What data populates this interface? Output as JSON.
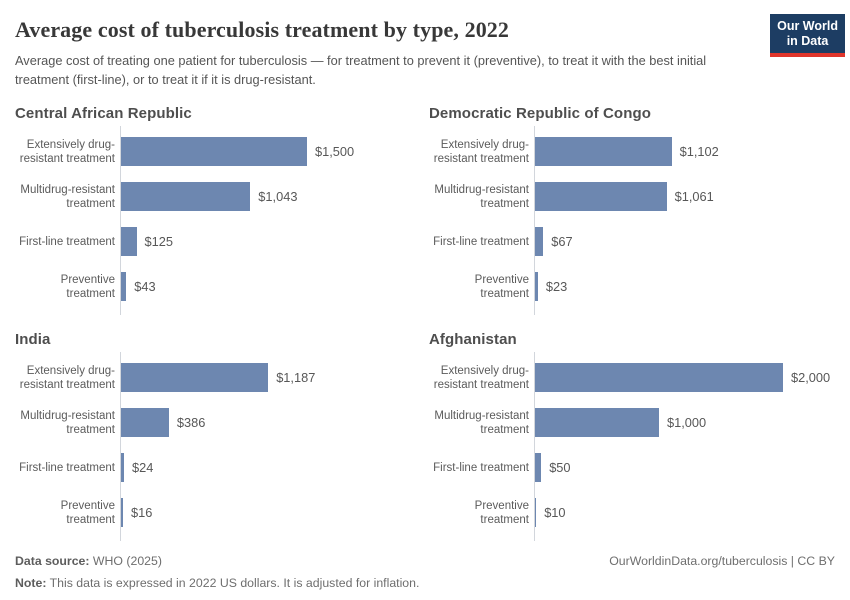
{
  "chart_data": {
    "type": "bar",
    "orientation": "horizontal",
    "title": "Average cost of tuberculosis treatment by type, 2022",
    "subtitle": "Average cost of treating one patient for tuberculosis — for treatment to prevent it (preventive), to treat it with the best initial treatment (first-line), or to treat it if it is drug-resistant.",
    "categories": [
      "Extensively drug-resistant treatment",
      "Multidrug-resistant treatment",
      "First-line treatment",
      "Preventive treatment"
    ],
    "xlim": [
      0,
      2000
    ],
    "grid": false,
    "legend": false,
    "bar_color": "#6d87b0",
    "unit": "2022 US dollars",
    "facets": [
      {
        "title": "Central African Republic",
        "values": [
          1500,
          1043,
          125,
          43
        ],
        "value_labels": [
          "$1,500",
          "$1,043",
          "$125",
          "$43"
        ]
      },
      {
        "title": "Democratic Republic of Congo",
        "values": [
          1102,
          1061,
          67,
          23
        ],
        "value_labels": [
          "$1,102",
          "$1,061",
          "$67",
          "$23"
        ]
      },
      {
        "title": "India",
        "values": [
          1187,
          386,
          24,
          16
        ],
        "value_labels": [
          "$1,187",
          "$386",
          "$24",
          "$16"
        ]
      },
      {
        "title": "Afghanistan",
        "values": [
          2000,
          1000,
          50,
          10
        ],
        "value_labels": [
          "$2,000",
          "$1,000",
          "$50",
          "$10"
        ]
      }
    ]
  },
  "logo": {
    "line1": "Our World",
    "line2": "in Data"
  },
  "footer": {
    "source_label": "Data source:",
    "source_value": " WHO (2025)",
    "note_label": "Note:",
    "note_value": " This data is expressed in 2022 US dollars. It is adjusted for inflation.",
    "credit": "OurWorldinData.org/tuberculosis | CC BY"
  }
}
